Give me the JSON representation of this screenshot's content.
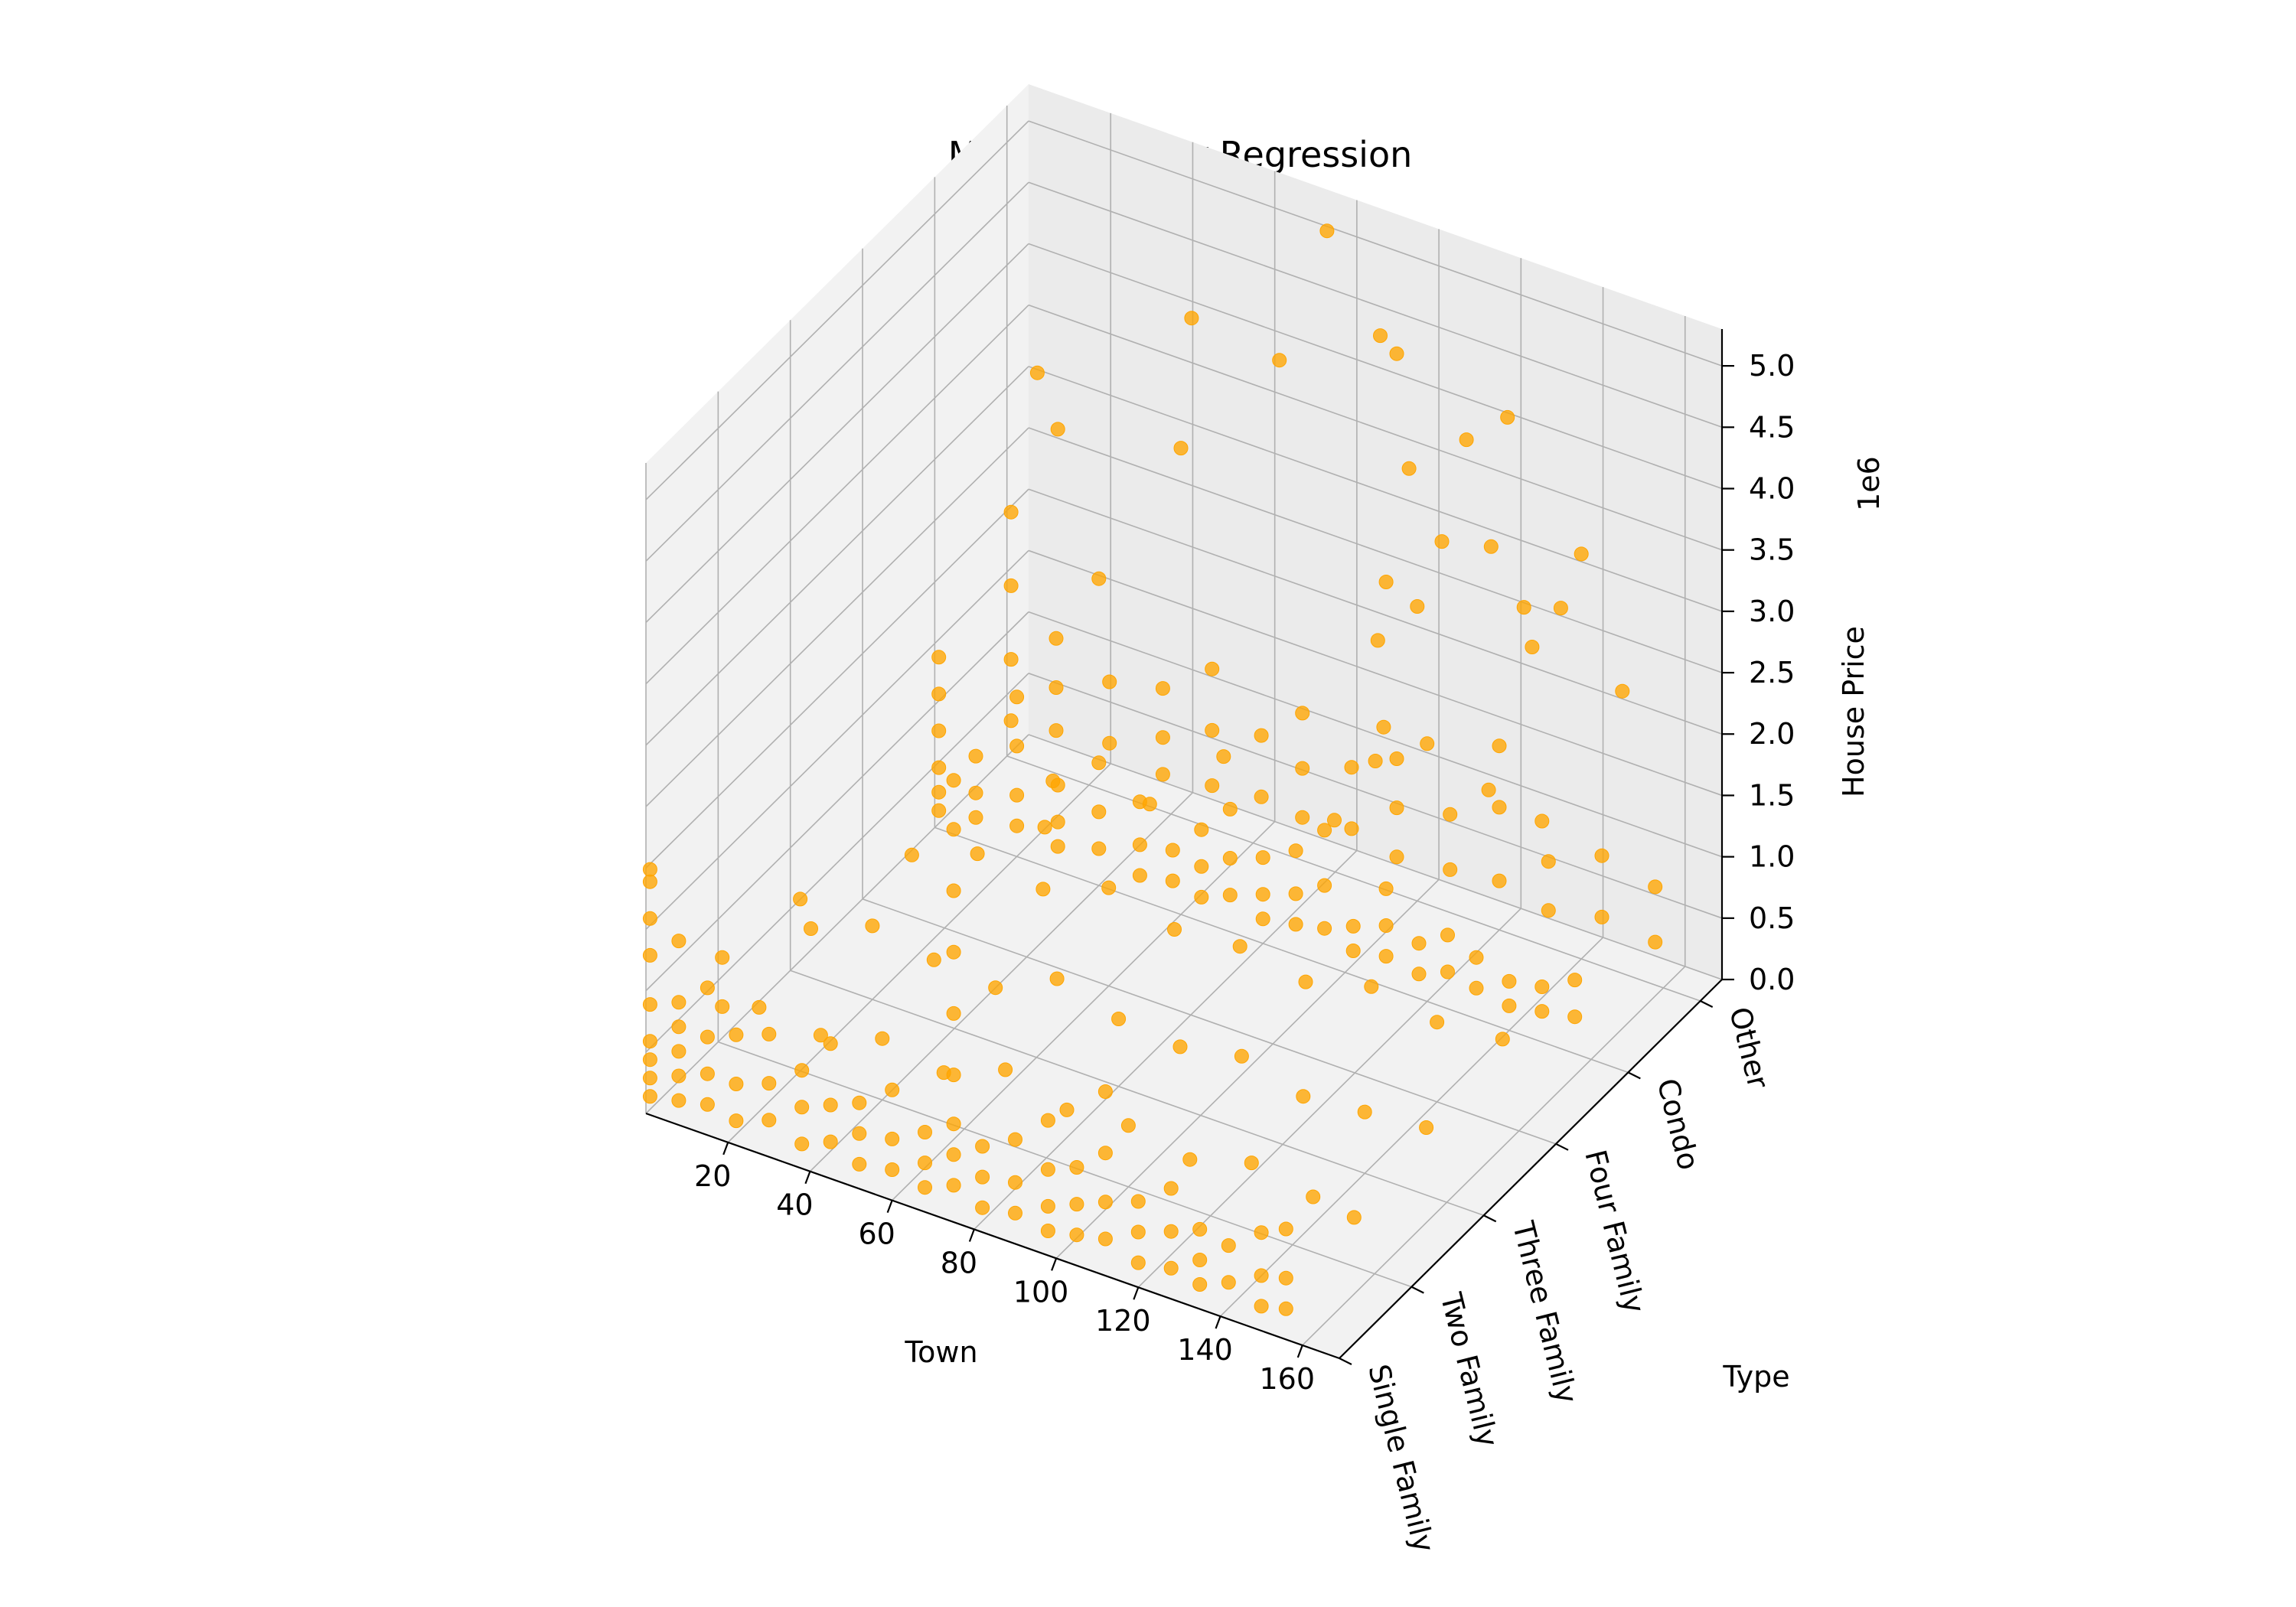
{
  "chart_data": {
    "type": "scatter",
    "projection": "3d",
    "title": "Multiple Linear Regression",
    "xlabel": "Town",
    "ylabel": "Type",
    "zlabel": "House Price",
    "z_offset_label": "1e6",
    "x_ticks": [
      "20",
      "40",
      "60",
      "80",
      "100",
      "120",
      "140",
      "160"
    ],
    "y_ticks": [
      "Single Family",
      "Two Family",
      "Three Family",
      "Four Family",
      "Condo",
      "Other"
    ],
    "z_ticks": [
      "0.0",
      "0.5",
      "1.0",
      "1.5",
      "2.0",
      "2.5",
      "3.0",
      "3.5",
      "4.0",
      "4.5",
      "5.0"
    ],
    "xlim": [
      0,
      169
    ],
    "ylim": [
      0,
      5.3
    ],
    "zlim": [
      0,
      5300000
    ],
    "grid": true,
    "marker_color": "#ffa500",
    "series": [
      {
        "points": [
          [
            1,
            0,
            150000
          ],
          [
            1,
            0,
            300000
          ],
          [
            1,
            0,
            450000
          ],
          [
            1,
            0,
            600000
          ],
          [
            1,
            0,
            900000
          ],
          [
            1,
            0,
            1300000
          ],
          [
            1,
            0,
            1600000
          ],
          [
            1,
            0,
            1900000
          ],
          [
            1,
            0,
            2000000
          ],
          [
            8,
            0,
            200000
          ],
          [
            8,
            0,
            400000
          ],
          [
            8,
            0,
            600000
          ],
          [
            8,
            0,
            800000
          ],
          [
            8,
            0,
            1000000
          ],
          [
            8,
            0,
            1500000
          ],
          [
            15,
            0,
            250000
          ],
          [
            15,
            0,
            500000
          ],
          [
            15,
            0,
            800000
          ],
          [
            15,
            0,
            1200000
          ],
          [
            22,
            0,
            200000
          ],
          [
            22,
            0,
            500000
          ],
          [
            22,
            0,
            900000
          ],
          [
            30,
            0,
            300000
          ],
          [
            30,
            0,
            600000
          ],
          [
            30,
            0,
            1000000
          ],
          [
            38,
            0,
            200000
          ],
          [
            38,
            0,
            500000
          ],
          [
            38,
            0,
            800000
          ],
          [
            45,
            0,
            300000
          ],
          [
            45,
            0,
            600000
          ],
          [
            45,
            0,
            1100000
          ],
          [
            52,
            0,
            200000
          ],
          [
            52,
            0,
            450000
          ],
          [
            52,
            0,
            700000
          ],
          [
            60,
            0,
            250000
          ],
          [
            60,
            0,
            500000
          ],
          [
            60,
            0,
            900000
          ],
          [
            68,
            0,
            200000
          ],
          [
            68,
            0,
            400000
          ],
          [
            68,
            0,
            650000
          ],
          [
            75,
            0,
            300000
          ],
          [
            75,
            0,
            550000
          ],
          [
            75,
            0,
            800000
          ],
          [
            75,
            0,
            1200000
          ],
          [
            75,
            0,
            1700000
          ],
          [
            75,
            0,
            2200000
          ],
          [
            75,
            0,
            2700000
          ],
          [
            75,
            0,
            3200000
          ],
          [
            75,
            0,
            3600000
          ],
          [
            82,
            0,
            200000
          ],
          [
            82,
            0,
            450000
          ],
          [
            82,
            0,
            700000
          ],
          [
            90,
            0,
            250000
          ],
          [
            90,
            0,
            500000
          ],
          [
            90,
            0,
            850000
          ],
          [
            98,
            0,
            200000
          ],
          [
            98,
            0,
            400000
          ],
          [
            98,
            0,
            700000
          ],
          [
            98,
            0,
            1100000
          ],
          [
            105,
            0,
            250000
          ],
          [
            105,
            0,
            500000
          ],
          [
            105,
            0,
            800000
          ],
          [
            112,
            0,
            300000
          ],
          [
            112,
            0,
            600000
          ],
          [
            112,
            0,
            1000000
          ],
          [
            112,
            0,
            1500000
          ],
          [
            120,
            0,
            200000
          ],
          [
            120,
            0,
            450000
          ],
          [
            120,
            0,
            700000
          ],
          [
            128,
            0,
            250000
          ],
          [
            128,
            0,
            550000
          ],
          [
            128,
            0,
            900000
          ],
          [
            135,
            0,
            200000
          ],
          [
            135,
            0,
            400000
          ],
          [
            135,
            0,
            650000
          ],
          [
            142,
            0,
            300000
          ],
          [
            142,
            0,
            600000
          ],
          [
            150,
            0,
            200000
          ],
          [
            150,
            0,
            450000
          ],
          [
            150,
            0,
            800000
          ],
          [
            156,
            0,
            250000
          ],
          [
            156,
            0,
            500000
          ],
          [
            156,
            0,
            900000
          ],
          [
            1,
            1,
            300000
          ],
          [
            1,
            1,
            700000
          ],
          [
            10,
            1,
            400000
          ],
          [
            25,
            1,
            350000
          ],
          [
            40,
            1,
            500000
          ],
          [
            55,
            1,
            400000
          ],
          [
            70,
            1,
            600000
          ],
          [
            85,
            1,
            450000
          ],
          [
            100,
            1,
            500000
          ],
          [
            115,
            1,
            400000
          ],
          [
            130,
            1,
            550000
          ],
          [
            145,
            1,
            450000
          ],
          [
            155,
            1,
            400000
          ],
          [
            5,
            2,
            400000
          ],
          [
            20,
            2,
            600000
          ],
          [
            35,
            2,
            500000
          ],
          [
            50,
            2,
            450000
          ],
          [
            65,
            2,
            700000
          ],
          [
            80,
            2,
            550000
          ],
          [
            95,
            2,
            500000
          ],
          [
            110,
            2,
            600000
          ],
          [
            125,
            2,
            450000
          ],
          [
            140,
            2,
            500000
          ],
          [
            155,
            2,
            550000
          ],
          [
            12,
            3,
            500000
          ],
          [
            28,
            3,
            700000
          ],
          [
            44,
            3,
            600000
          ],
          [
            60,
            3,
            800000
          ],
          [
            76,
            3,
            650000
          ],
          [
            92,
            3,
            700000
          ],
          [
            108,
            3,
            600000
          ],
          [
            124,
            3,
            750000
          ],
          [
            140,
            3,
            650000
          ],
          [
            156,
            3,
            700000
          ],
          [
            1,
            4,
            150000
          ],
          [
            1,
            4,
            300000
          ],
          [
            1,
            4,
            500000
          ],
          [
            1,
            4,
            800000
          ],
          [
            1,
            4,
            1100000
          ],
          [
            1,
            4,
            1400000
          ],
          [
            10,
            4,
            200000
          ],
          [
            10,
            4,
            400000
          ],
          [
            10,
            4,
            700000
          ],
          [
            20,
            4,
            250000
          ],
          [
            20,
            4,
            500000
          ],
          [
            20,
            4,
            900000
          ],
          [
            20,
            4,
            1300000
          ],
          [
            30,
            4,
            200000
          ],
          [
            30,
            4,
            400000
          ],
          [
            30,
            4,
            700000
          ],
          [
            40,
            4,
            300000
          ],
          [
            40,
            4,
            600000
          ],
          [
            40,
            4,
            1000000
          ],
          [
            50,
            4,
            200000
          ],
          [
            50,
            4,
            450000
          ],
          [
            50,
            4,
            800000
          ],
          [
            58,
            4,
            250000
          ],
          [
            58,
            4,
            500000
          ],
          [
            65,
            4,
            200000
          ],
          [
            65,
            4,
            450000
          ],
          [
            65,
            4,
            750000
          ],
          [
            72,
            4,
            300000
          ],
          [
            72,
            4,
            600000
          ],
          [
            72,
            4,
            1000000
          ],
          [
            80,
            4,
            200000
          ],
          [
            80,
            4,
            400000
          ],
          [
            80,
            4,
            700000
          ],
          [
            88,
            4,
            250000
          ],
          [
            88,
            4,
            500000
          ],
          [
            88,
            4,
            850000
          ],
          [
            95,
            4,
            300000
          ],
          [
            95,
            4,
            650000
          ],
          [
            95,
            4,
            1100000
          ],
          [
            102,
            4,
            200000
          ],
          [
            102,
            4,
            400000
          ],
          [
            110,
            4,
            250000
          ],
          [
            110,
            4,
            500000
          ],
          [
            110,
            4,
            800000
          ],
          [
            118,
            4,
            200000
          ],
          [
            118,
            4,
            450000
          ],
          [
            125,
            4,
            300000
          ],
          [
            125,
            4,
            600000
          ],
          [
            132,
            4,
            250000
          ],
          [
            132,
            4,
            500000
          ],
          [
            140,
            4,
            200000
          ],
          [
            140,
            4,
            400000
          ],
          [
            148,
            4,
            250000
          ],
          [
            148,
            4,
            450000
          ],
          [
            156,
            4,
            300000
          ],
          [
            156,
            4,
            600000
          ],
          [
            1,
            5,
            300000
          ],
          [
            1,
            5,
            800000
          ],
          [
            1,
            5,
            1400000
          ],
          [
            1,
            5,
            2000000
          ],
          [
            12,
            5,
            350000
          ],
          [
            12,
            5,
            700000
          ],
          [
            12,
            5,
            1100000
          ],
          [
            25,
            5,
            400000
          ],
          [
            25,
            5,
            900000
          ],
          [
            38,
            5,
            300000
          ],
          [
            38,
            5,
            600000
          ],
          [
            38,
            5,
            1000000
          ],
          [
            50,
            5,
            350000
          ],
          [
            50,
            5,
            800000
          ],
          [
            50,
            5,
            1300000
          ],
          [
            62,
            5,
            400000
          ],
          [
            62,
            5,
            900000
          ],
          [
            72,
            5,
            350000
          ],
          [
            72,
            5,
            750000
          ],
          [
            72,
            5,
            1200000
          ],
          [
            84,
            5,
            400000
          ],
          [
            84,
            5,
            900000
          ],
          [
            95,
            5,
            300000
          ],
          [
            95,
            5,
            700000
          ],
          [
            95,
            5,
            1100000
          ],
          [
            108,
            5,
            350000
          ],
          [
            108,
            5,
            800000
          ],
          [
            120,
            5,
            400000
          ],
          [
            120,
            5,
            1000000
          ],
          [
            120,
            5,
            1500000
          ],
          [
            132,
            5,
            300000
          ],
          [
            132,
            5,
            700000
          ],
          [
            145,
            5,
            400000
          ],
          [
            145,
            5,
            900000
          ],
          [
            158,
            5,
            350000
          ],
          [
            158,
            5,
            800000
          ],
          [
            20,
            1,
            1400000
          ],
          [
            62,
            2,
            1900000
          ],
          [
            64,
            2,
            2300000
          ],
          [
            70,
            3,
            1600000
          ],
          [
            88,
            3,
            2200000
          ],
          [
            115,
            3,
            2000000
          ],
          [
            125,
            3,
            2600000
          ],
          [
            127,
            3,
            2900000
          ],
          [
            120,
            4,
            2100000
          ],
          [
            135,
            4,
            1900000
          ],
          [
            100,
            5,
            2400000
          ],
          [
            118,
            5,
            3100000
          ],
          [
            126,
            5,
            2700000
          ],
          [
            108,
            4,
            2800000
          ],
          [
            110,
            4,
            3300000
          ],
          [
            98,
            5,
            3500000
          ],
          [
            106,
            5,
            3000000
          ],
          [
            112,
            5,
            3900000
          ],
          [
            128,
            5,
            2400000
          ],
          [
            122,
            5,
            4200000
          ],
          [
            84,
            4,
            4800000
          ],
          [
            78,
            5,
            5200000
          ],
          [
            91,
            5,
            4500000
          ],
          [
            95,
            5,
            4400000
          ],
          [
            60,
            4,
            3800000
          ],
          [
            45,
            5,
            4100000
          ],
          [
            135,
            5,
            2800000
          ],
          [
            140,
            5,
            3300000
          ],
          [
            150,
            5,
            2300000
          ],
          [
            40,
            4,
            2500000
          ],
          [
            30,
            4,
            3600000
          ],
          [
            25,
            4,
            4000000
          ],
          [
            148,
            4,
            1800000
          ]
        ]
      }
    ]
  }
}
